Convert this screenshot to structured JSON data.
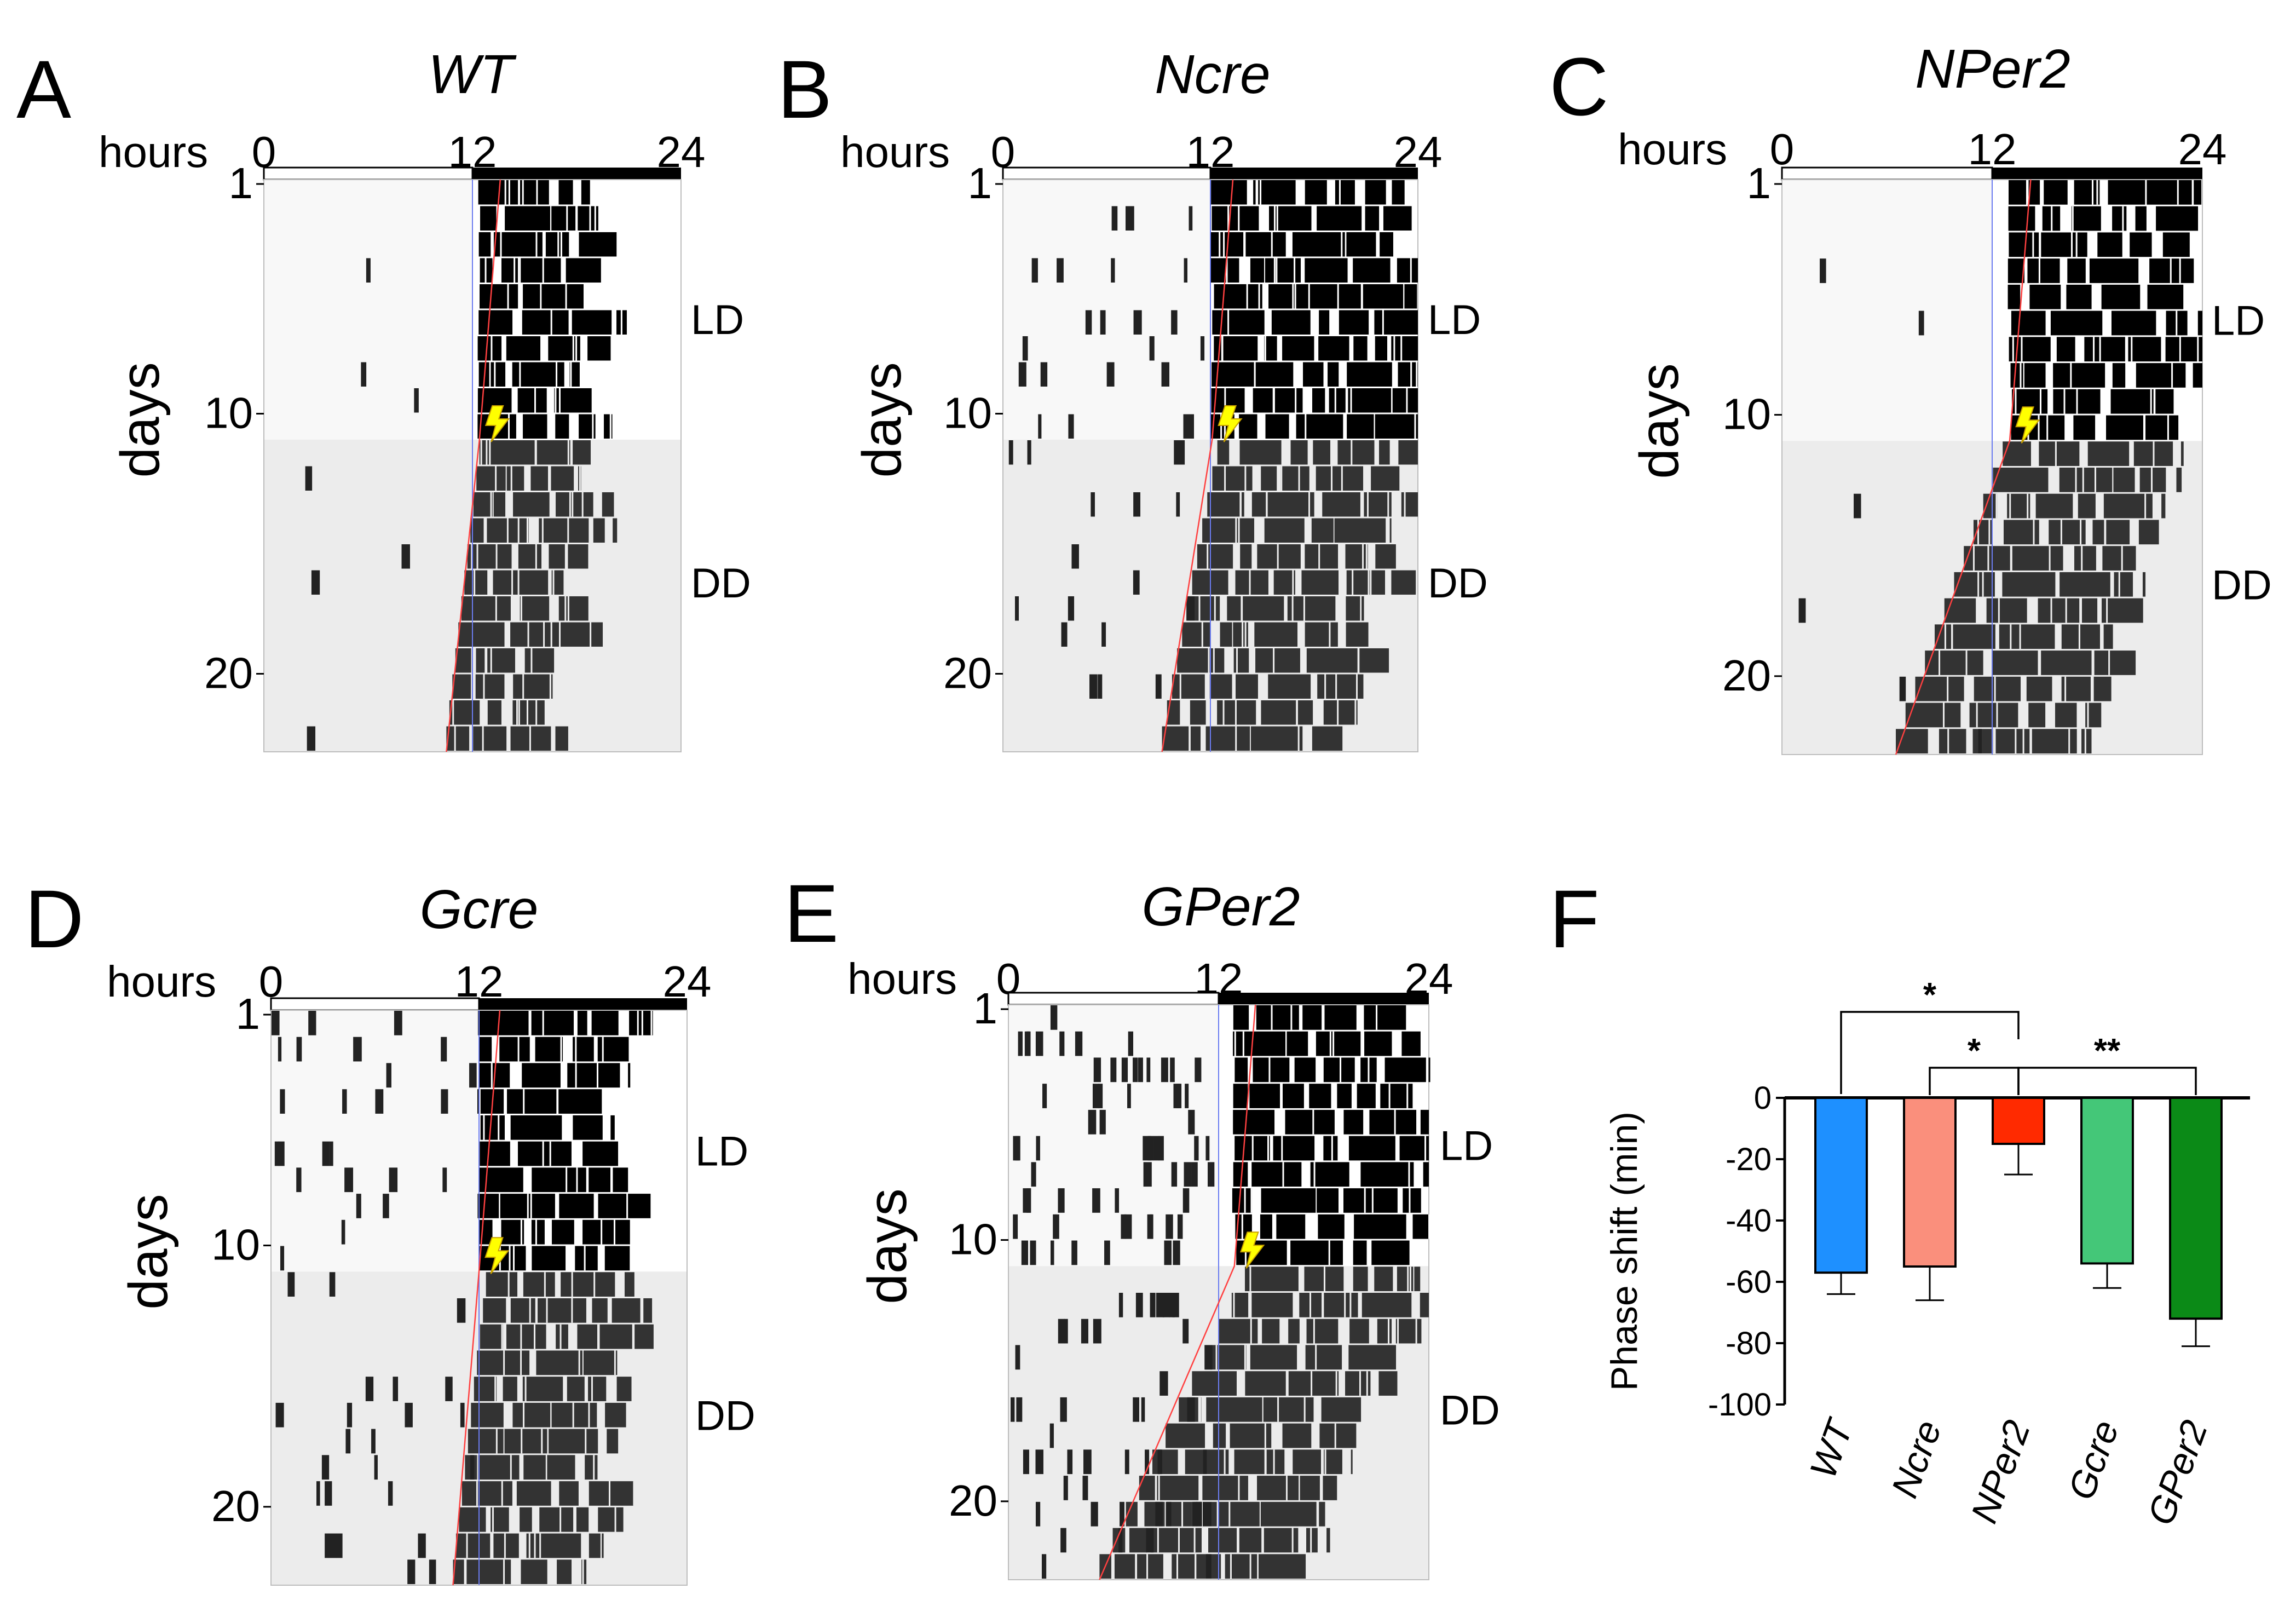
{
  "chart_data": [
    {
      "type": "actogram",
      "panel": "A",
      "title": "WT",
      "hours_label": "hours",
      "hour_ticks": [
        "0",
        "12",
        "24"
      ],
      "ylabel": "days",
      "day_ticks": [
        "1",
        "10",
        "20"
      ],
      "sections": [
        "LD",
        "DD"
      ],
      "light_hours": [
        0,
        12
      ],
      "dark_hours": [
        12,
        24
      ],
      "light_pulse_day": 10,
      "days_shown": 22,
      "seed": 11,
      "ld_onset_hour": 12.4,
      "dd_onset_start_hour": 12.4,
      "dd_onset_end_hour": 10.5,
      "block_len_hours": 6.5,
      "light_phase_activity": "low"
    },
    {
      "type": "actogram",
      "panel": "B",
      "title": "Ncre",
      "hours_label": "hours",
      "hour_ticks": [
        "0",
        "12",
        "24"
      ],
      "ylabel": "days",
      "day_ticks": [
        "1",
        "10",
        "20"
      ],
      "sections": [
        "LD",
        "DD"
      ],
      "light_hours": [
        0,
        12
      ],
      "dark_hours": [
        12,
        24
      ],
      "light_pulse_day": 10,
      "days_shown": 22,
      "seed": 23,
      "ld_onset_hour": 12.1,
      "dd_onset_start_hour": 12.4,
      "dd_onset_end_hour": 9.2,
      "block_len_hours": 11,
      "light_phase_activity": "medium"
    },
    {
      "type": "actogram",
      "panel": "C",
      "title": "NPer2",
      "hours_label": "hours",
      "hour_ticks": [
        "0",
        "12",
        "24"
      ],
      "ylabel": "days",
      "day_ticks": [
        "1",
        "10",
        "20"
      ],
      "sections": [
        "LD",
        "DD"
      ],
      "light_hours": [
        0,
        12
      ],
      "dark_hours": [
        12,
        24
      ],
      "light_pulse_day": 10,
      "days_shown": 22,
      "seed": 37,
      "ld_onset_hour": 13.0,
      "dd_onset_start_hour": 12.6,
      "dd_onset_end_hour": 6.5,
      "block_len_hours": 10,
      "light_phase_activity": "low"
    },
    {
      "type": "actogram",
      "panel": "D",
      "title": "Gcre",
      "hours_label": "hours",
      "hour_ticks": [
        "0",
        "12",
        "24"
      ],
      "ylabel": "days",
      "day_ticks": [
        "1",
        "10",
        "20"
      ],
      "sections": [
        "LD",
        "DD"
      ],
      "light_hours": [
        0,
        12
      ],
      "dark_hours": [
        12,
        24
      ],
      "light_pulse_day": 10,
      "days_shown": 22,
      "seed": 41,
      "ld_onset_hour": 12.0,
      "dd_onset_start_hour": 12.4,
      "dd_onset_end_hour": 10.5,
      "block_len_hours": 8,
      "light_phase_activity": "medium"
    },
    {
      "type": "actogram",
      "panel": "E",
      "title": "GPer2",
      "hours_label": "hours",
      "hour_ticks": [
        "0",
        "12",
        "24"
      ],
      "ylabel": "days",
      "day_ticks": [
        "1",
        "10",
        "20"
      ],
      "sections": [
        "LD",
        "DD"
      ],
      "light_hours": [
        0,
        12
      ],
      "dark_hours": [
        12,
        24
      ],
      "light_pulse_day": 10,
      "days_shown": 22,
      "seed": 53,
      "ld_onset_hour": 12.9,
      "dd_onset_start_hour": 13.5,
      "dd_onset_end_hour": 5.2,
      "block_len_hours": 10.5,
      "light_phase_activity": "high"
    },
    {
      "type": "bar",
      "panel": "F",
      "title": "",
      "categories": [
        "WT",
        "Ncre",
        "NPer2",
        "Gcre",
        "GPer2"
      ],
      "values": [
        -57,
        -55,
        -15,
        -54,
        -72
      ],
      "errors": [
        7,
        11,
        10,
        8,
        9
      ],
      "colors": [
        "#1e90ff",
        "#fa8f7c",
        "#ff2a00",
        "#44c778",
        "#0b8a17"
      ],
      "ylabel": "Phase shift (min)",
      "ylim": [
        -100,
        0
      ],
      "yticks": [
        "0",
        "-20",
        "-40",
        "-60",
        "-80",
        "-100"
      ],
      "significance": [
        {
          "from": 0,
          "to": 2,
          "label": "*"
        },
        {
          "from": 1,
          "to": 2,
          "label": "*"
        },
        {
          "from": 2,
          "to": 4,
          "label": "**"
        }
      ]
    }
  ]
}
